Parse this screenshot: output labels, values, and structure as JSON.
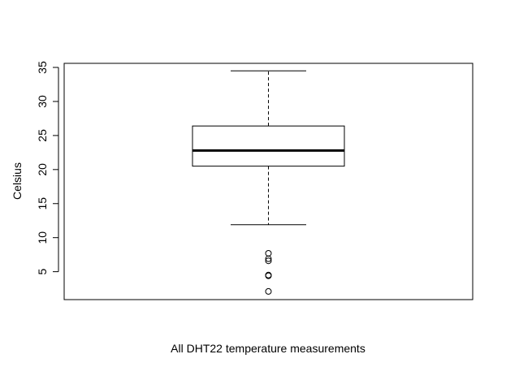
{
  "chart_data": {
    "type": "boxplot",
    "title": "",
    "xlabel": "All DHT22 temperature measurements",
    "ylabel": "Celsius",
    "ylim": [
      0.9,
      35.6
    ],
    "yticks": [
      5,
      10,
      15,
      20,
      25,
      30,
      35
    ],
    "grid": false,
    "legend": "none",
    "series": [
      {
        "min_whisker": 11.9,
        "q1": 20.5,
        "median": 22.8,
        "q3": 26.4,
        "max_whisker": 34.5,
        "outliers": [
          7.7,
          6.9,
          6.6,
          4.5,
          4.4,
          2.1
        ]
      }
    ]
  },
  "colors": {
    "line": "#000000",
    "background": "#ffffff"
  }
}
